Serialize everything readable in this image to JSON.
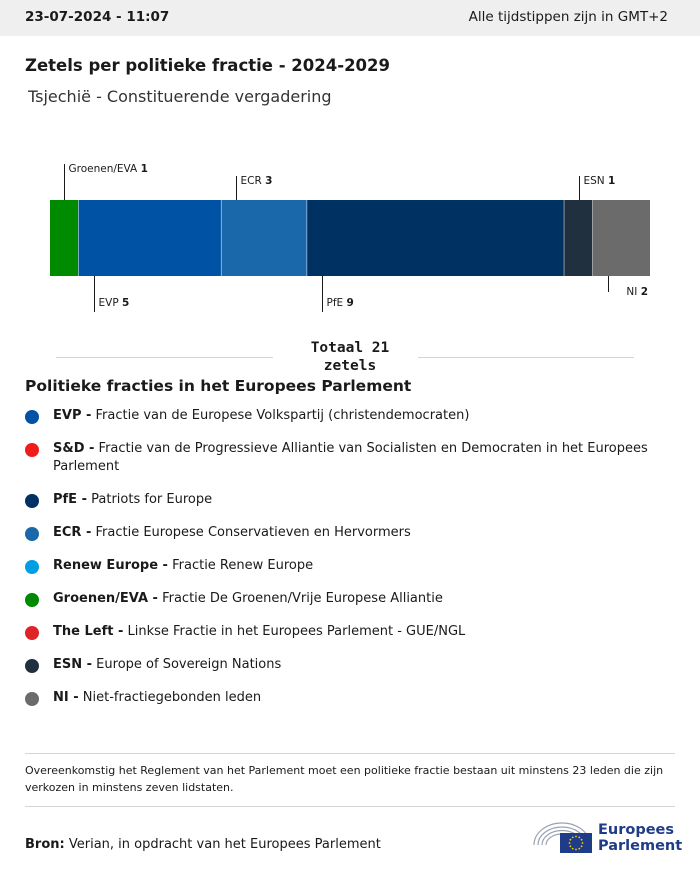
{
  "header": {
    "datetime": "23-07-2024 - 11:07",
    "timezone_note": "Alle tijdstippen zijn in GMT+2"
  },
  "title": "Zetels per politieke fractie - 2024-2029",
  "subtitle": "Tsjechië - Constituerende vergadering",
  "chart_data": {
    "type": "bar",
    "orientation": "horizontal-stacked",
    "title": "Zetels per politieke fractie - 2024-2029",
    "subtitle": "Tsjechië - Constituerende vergadering",
    "total": 21,
    "series": [
      {
        "name": "Groenen/EVA",
        "value": 1,
        "color": "#008a00",
        "label_side": "above"
      },
      {
        "name": "EVP",
        "value": 5,
        "color": "#0053a4",
        "label_side": "below"
      },
      {
        "name": "ECR",
        "value": 3,
        "color": "#1a67a9",
        "label_side": "above"
      },
      {
        "name": "PfE",
        "value": 9,
        "color": "#003163",
        "label_side": "below"
      },
      {
        "name": "ESN",
        "value": 1,
        "color": "#21303f",
        "label_side": "above"
      },
      {
        "name": "NI",
        "value": 2,
        "color": "#6b6b6b",
        "label_side": "below"
      }
    ]
  },
  "total": {
    "line1": "Totaal 21",
    "line2": "zetels"
  },
  "legend": {
    "title": "Politieke fracties in het Europees Parlement",
    "items": [
      {
        "abbr": "EVP -",
        "desc": " Fractie van de Europese Volkspartij (christendemocraten)",
        "color": "#0053a4"
      },
      {
        "abbr": "S&D -",
        "desc": " Fractie van de Progressieve Alliantie van Socialisten en Democraten in het Europees Parlement",
        "color": "#f01c1c"
      },
      {
        "abbr": "PfE -",
        "desc": " Patriots for Europe",
        "color": "#003163"
      },
      {
        "abbr": "ECR -",
        "desc": " Fractie Europese Conservatieven en Hervormers",
        "color": "#1a67a9"
      },
      {
        "abbr": "Renew Europe -",
        "desc": " Fractie Renew Europe",
        "color": "#009ee3"
      },
      {
        "abbr": "Groenen/EVA -",
        "desc": " Fractie De Groenen/Vrije Europese Alliantie",
        "color": "#008a00"
      },
      {
        "abbr": "The Left -",
        "desc": " Linkse Fractie in het Europees Parlement - GUE/NGL",
        "color": "#df2427"
      },
      {
        "abbr": "ESN -",
        "desc": " Europe of Sovereign Nations",
        "color": "#21303f"
      },
      {
        "abbr": "NI -",
        "desc": " Niet-fractiegebonden leden",
        "color": "#6b6b6b"
      }
    ]
  },
  "footnote": "Overeenkomstig het Reglement van het Parlement moet een politieke fractie bestaan uit minstens 23 leden die zijn verkozen in minstens zeven lidstaten.",
  "source": {
    "label": "Bron:",
    "text": " Verian, in opdracht van het Europees Parlement"
  },
  "logo": {
    "line1": "Europees",
    "line2": "Parlement",
    "color": "#1f3c88"
  }
}
